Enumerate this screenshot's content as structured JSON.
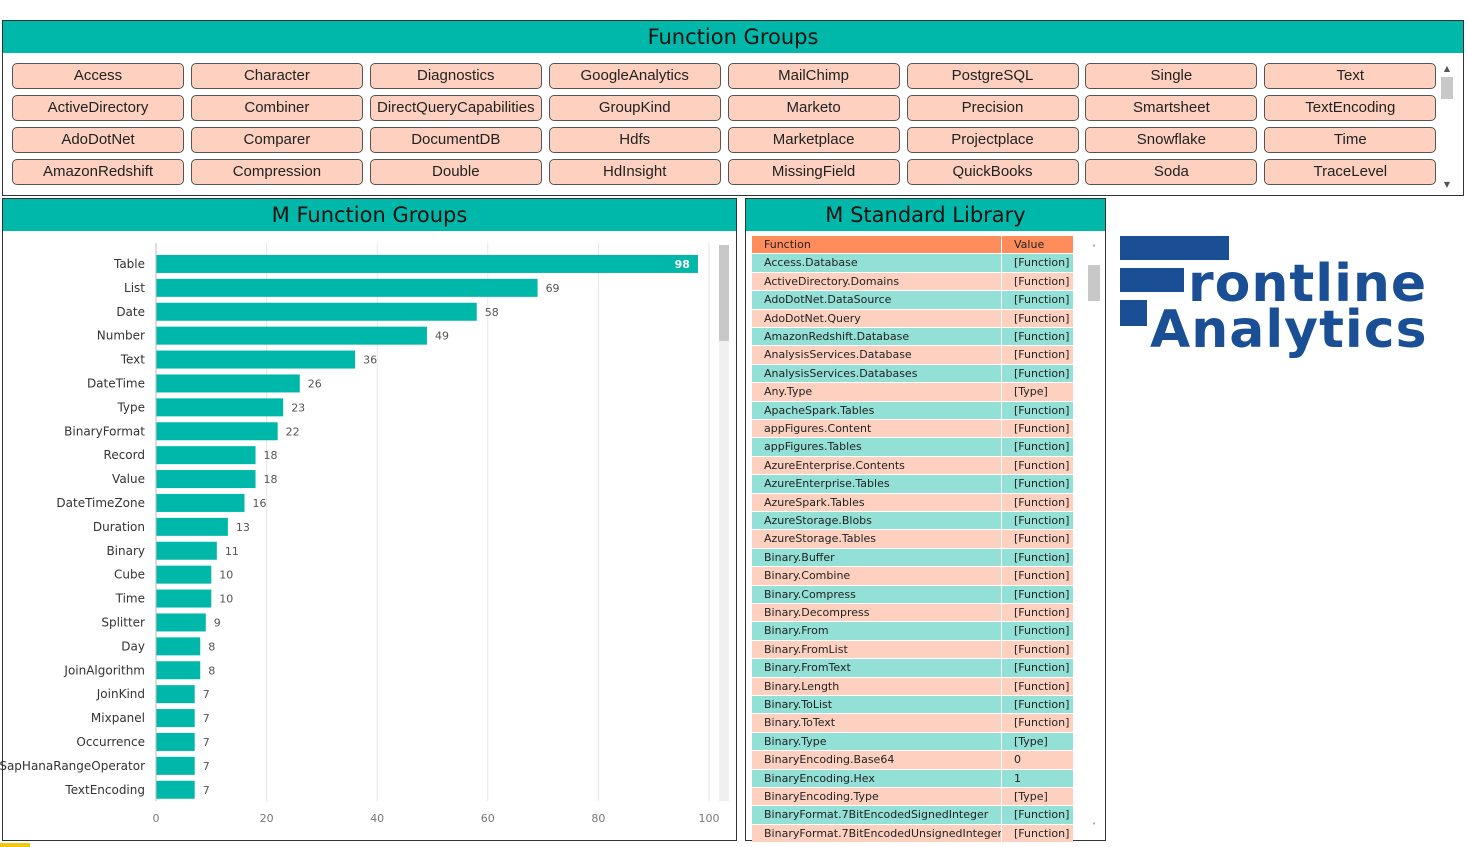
{
  "function_groups": {
    "title": "Function Groups",
    "items": [
      [
        "Access",
        "ActiveDirectory",
        "AdoDotNet",
        "AmazonRedshift"
      ],
      [
        "Character",
        "Combiner",
        "Comparer",
        "Compression"
      ],
      [
        "Diagnostics",
        "DirectQueryCapabilities",
        "DocumentDB",
        "Double"
      ],
      [
        "GoogleAnalytics",
        "GroupKind",
        "Hdfs",
        "HdInsight"
      ],
      [
        "MailChimp",
        "Marketo",
        "Marketplace",
        "MissingField"
      ],
      [
        "PostgreSQL",
        "Precision",
        "Projectplace",
        "QuickBooks"
      ],
      [
        "Single",
        "Smartsheet",
        "Snowflake",
        "Soda"
      ],
      [
        "Text",
        "TextEncoding",
        "Time",
        "TraceLevel"
      ]
    ]
  },
  "chart": {
    "title": "M Function Groups"
  },
  "chart_data": {
    "type": "bar",
    "orientation": "horizontal",
    "title": "M Function Groups",
    "categories": [
      "Table",
      "List",
      "Date",
      "Number",
      "Text",
      "DateTime",
      "Type",
      "BinaryFormat",
      "Record",
      "Value",
      "DateTimeZone",
      "Duration",
      "Binary",
      "Cube",
      "Time",
      "Splitter",
      "Day",
      "JoinAlgorithm",
      "JoinKind",
      "Mixpanel",
      "Occurrence",
      "SapHanaRangeOperator",
      "TextEncoding"
    ],
    "values": [
      98,
      69,
      58,
      49,
      36,
      26,
      23,
      22,
      18,
      18,
      16,
      13,
      11,
      10,
      10,
      9,
      8,
      8,
      7,
      7,
      7,
      7,
      7
    ],
    "xlim": [
      0,
      100
    ],
    "xticks": [
      0,
      20,
      40,
      60,
      80,
      100
    ],
    "grid": true,
    "bar_color": "#00b8a9"
  },
  "table": {
    "title": "M Standard Library",
    "headers": [
      "Function",
      "Value"
    ],
    "rows": [
      [
        "Access.Database",
        "[Function]"
      ],
      [
        "ActiveDirectory.Domains",
        "[Function]"
      ],
      [
        "AdoDotNet.DataSource",
        "[Function]"
      ],
      [
        "AdoDotNet.Query",
        "[Function]"
      ],
      [
        "AmazonRedshift.Database",
        "[Function]"
      ],
      [
        "AnalysisServices.Database",
        "[Function]"
      ],
      [
        "AnalysisServices.Databases",
        "[Function]"
      ],
      [
        "Any.Type",
        "[Type]"
      ],
      [
        "ApacheSpark.Tables",
        "[Function]"
      ],
      [
        "appFigures.Content",
        "[Function]"
      ],
      [
        "appFigures.Tables",
        "[Function]"
      ],
      [
        "AzureEnterprise.Contents",
        "[Function]"
      ],
      [
        "AzureEnterprise.Tables",
        "[Function]"
      ],
      [
        "AzureSpark.Tables",
        "[Function]"
      ],
      [
        "AzureStorage.Blobs",
        "[Function]"
      ],
      [
        "AzureStorage.Tables",
        "[Function]"
      ],
      [
        "Binary.Buffer",
        "[Function]"
      ],
      [
        "Binary.Combine",
        "[Function]"
      ],
      [
        "Binary.Compress",
        "[Function]"
      ],
      [
        "Binary.Decompress",
        "[Function]"
      ],
      [
        "Binary.From",
        "[Function]"
      ],
      [
        "Binary.FromList",
        "[Function]"
      ],
      [
        "Binary.FromText",
        "[Function]"
      ],
      [
        "Binary.Length",
        "[Function]"
      ],
      [
        "Binary.ToList",
        "[Function]"
      ],
      [
        "Binary.ToText",
        "[Function]"
      ],
      [
        "Binary.Type",
        "[Type]"
      ],
      [
        "BinaryEncoding.Base64",
        "0"
      ],
      [
        "BinaryEncoding.Hex",
        "1"
      ],
      [
        "BinaryEncoding.Type",
        "[Type]"
      ],
      [
        "BinaryFormat.7BitEncodedSignedInteger",
        "[Function]"
      ],
      [
        "BinaryFormat.7BitEncodedUnsignedInteger",
        "[Function]"
      ]
    ]
  },
  "logo": {
    "line1": "rontline",
    "line2": "Analytics",
    "color": "#1a4f96"
  },
  "colors": {
    "accent": "#00b8a9",
    "chip": "#fdd0bf",
    "table_header": "#ff8c5a",
    "row_teal": "#92e0d6",
    "row_peach": "#fdd0bf"
  }
}
